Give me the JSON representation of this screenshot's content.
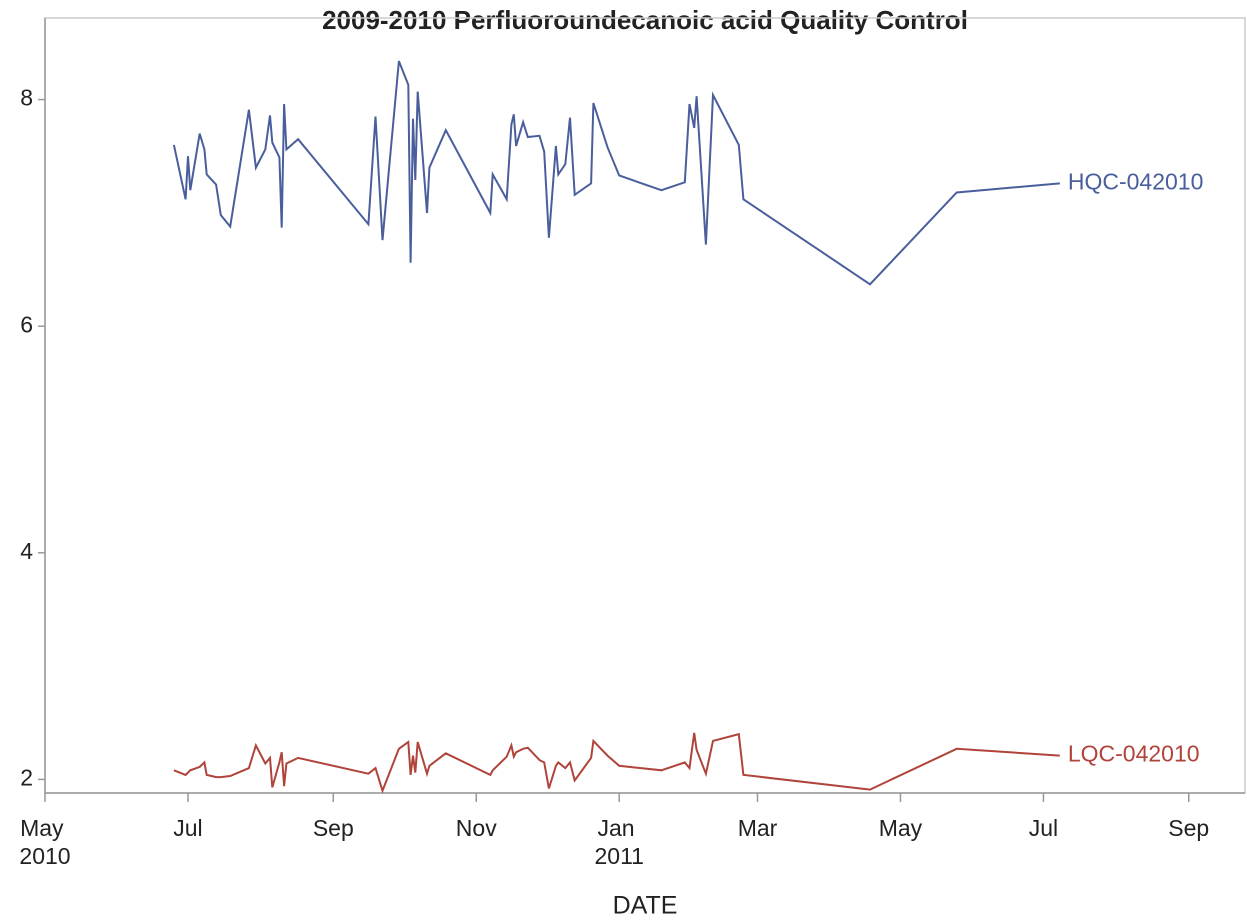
{
  "chart_data": {
    "type": "line",
    "title": "2009-2010 Perfluoroundecanoic acid Quality Control",
    "xlabel": "DATE",
    "x": [
      "2010-06-25",
      "2010-06-30",
      "2010-07-01",
      "2010-07-02",
      "2010-07-06",
      "2010-07-08",
      "2010-07-09",
      "2010-07-13",
      "2010-07-15",
      "2010-07-19",
      "2010-07-27",
      "2010-07-30",
      "2010-08-03",
      "2010-08-05",
      "2010-08-06",
      "2010-08-09",
      "2010-08-10",
      "2010-08-11",
      "2010-08-12",
      "2010-08-17",
      "2010-09-16",
      "2010-09-19",
      "2010-09-22",
      "2010-09-29",
      "2010-10-03",
      "2010-10-04",
      "2010-10-05",
      "2010-10-06",
      "2010-10-07",
      "2010-10-11",
      "2010-10-12",
      "2010-10-19",
      "2010-11-07",
      "2010-11-08",
      "2010-11-14",
      "2010-11-16",
      "2010-11-17",
      "2010-11-18",
      "2010-11-21",
      "2010-11-23",
      "2010-11-28",
      "2010-11-30",
      "2010-12-02",
      "2010-12-05",
      "2010-12-06",
      "2010-12-09",
      "2010-12-11",
      "2010-12-13",
      "2010-12-20",
      "2010-12-21",
      "2010-12-27",
      "2011-01-01",
      "2011-01-19",
      "2011-01-29",
      "2011-01-31",
      "2011-02-02",
      "2011-02-03",
      "2011-02-07",
      "2011-02-10",
      "2011-02-21",
      "2011-02-23",
      "2011-04-18",
      "2011-05-25",
      "2011-07-08"
    ],
    "series": [
      {
        "name": "HQC-042010",
        "color": "#4a5e9c",
        "values": [
          7.6,
          7.12,
          7.5,
          7.2,
          7.7,
          7.56,
          7.34,
          7.25,
          6.98,
          6.88,
          7.91,
          7.4,
          7.56,
          7.86,
          7.62,
          7.49,
          6.87,
          7.96,
          7.56,
          7.65,
          6.9,
          7.85,
          6.76,
          8.34,
          8.13,
          6.56,
          7.83,
          7.29,
          8.07,
          7.0,
          7.4,
          7.73,
          7.0,
          7.34,
          7.12,
          7.78,
          7.87,
          7.59,
          7.8,
          7.67,
          7.68,
          7.54,
          6.78,
          7.59,
          7.34,
          7.43,
          7.84,
          7.16,
          7.26,
          7.97,
          7.58,
          7.33,
          7.2,
          7.27,
          7.96,
          7.75,
          8.03,
          6.72,
          8.04,
          7.6,
          7.12,
          6.37,
          7.18,
          7.26
        ]
      },
      {
        "name": "LQC-042010",
        "color": "#b0433a",
        "values": [
          2.08,
          2.04,
          2.06,
          2.08,
          2.11,
          2.15,
          2.04,
          2.02,
          2.02,
          2.03,
          2.1,
          2.3,
          2.14,
          2.19,
          1.93,
          2.15,
          2.24,
          1.94,
          2.14,
          2.19,
          2.05,
          2.1,
          1.9,
          2.27,
          2.33,
          2.04,
          2.21,
          2.06,
          2.33,
          2.05,
          2.12,
          2.23,
          2.04,
          2.08,
          2.2,
          2.3,
          2.2,
          2.24,
          2.27,
          2.28,
          2.17,
          2.15,
          1.92,
          2.12,
          2.15,
          2.1,
          2.15,
          1.99,
          2.19,
          2.34,
          2.21,
          2.12,
          2.08,
          2.15,
          2.1,
          2.41,
          2.26,
          2.05,
          2.34,
          2.4,
          2.04,
          1.91,
          2.27,
          2.21
        ]
      }
    ],
    "xlim": [
      "2010-05-01",
      "2011-09-25"
    ],
    "xticks": [
      {
        "value": "2010-05-01",
        "label": "May 2010"
      },
      {
        "value": "2010-07-01",
        "label": "Jul"
      },
      {
        "value": "2010-09-01",
        "label": "Sep"
      },
      {
        "value": "2010-11-01",
        "label": "Nov"
      },
      {
        "value": "2011-01-01",
        "label": "Jan 2011"
      },
      {
        "value": "2011-03-01",
        "label": "Mar"
      },
      {
        "value": "2011-05-01",
        "label": "May"
      },
      {
        "value": "2011-07-01",
        "label": "Jul"
      },
      {
        "value": "2011-09-01",
        "label": "Sep"
      }
    ],
    "ylim": [
      1.88,
      8.72
    ],
    "yticks": [
      2,
      4,
      6,
      8
    ],
    "grid": false
  }
}
